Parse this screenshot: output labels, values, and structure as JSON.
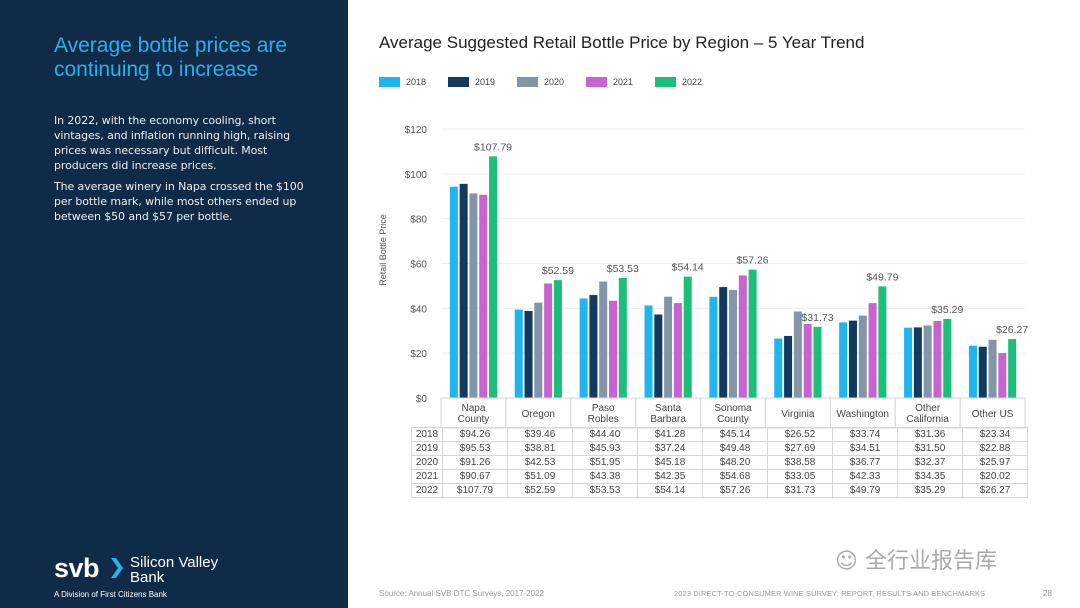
{
  "left_panel": {
    "headline": "Average bottle prices are continuing to increase",
    "paragraph1": "In 2022, with the economy cooling, short vintages, and inflation running high, raising prices was necessary but difficult. Most producers did increase prices.",
    "paragraph2": "The average winery in Napa crossed the $100 per bottle mark, while most others ended up between $50 and $57 per bottle.",
    "logo": {
      "short": "svb",
      "name_line1": "Silicon Valley",
      "name_line2": "Bank",
      "subtitle": "A Division of First Citizens Bank"
    },
    "colors": {
      "background": "#0f2b47",
      "headline": "#2ab0ec",
      "chevron": "#2ab0ec"
    }
  },
  "footer": {
    "source": "Source: Annual SVB DTC Surveys, 2017-2022",
    "report": "2023 DIRECT-TO-CONSUMER WINE SURVEY: REPORT, RESULTS AND BENCHMARKS",
    "page": "28",
    "watermark": "全行业报告库"
  },
  "chart_data": {
    "type": "bar",
    "title": "Average Suggested Retail Bottle Price by Region – 5 Year Trend",
    "xlabel": "",
    "ylabel": "Retail Bottle Price",
    "ylim": [
      0,
      120
    ],
    "yticks": [
      0,
      20,
      40,
      60,
      80,
      100,
      120
    ],
    "ytick_labels": [
      "$0",
      "$20",
      "$40",
      "$60",
      "$80",
      "$100",
      "$120"
    ],
    "grid": true,
    "legend_position": "top-left",
    "categories": [
      "Napa County",
      "Oregon",
      "Paso Robles",
      "Santa Barbara",
      "Sonoma County",
      "Virginia",
      "Washington",
      "Other California",
      "Other US"
    ],
    "category_lines": [
      [
        "Napa",
        "County"
      ],
      [
        "Oregon"
      ],
      [
        "Paso",
        "Robles"
      ],
      [
        "Santa",
        "Barbara"
      ],
      [
        "Sonoma",
        "County"
      ],
      [
        "Virginia"
      ],
      [
        "Washington"
      ],
      [
        "Other",
        "California"
      ],
      [
        "Other US"
      ]
    ],
    "series": [
      {
        "name": "2018",
        "color": "#1fb5f0",
        "values": [
          94.26,
          39.46,
          44.4,
          41.28,
          45.14,
          26.52,
          33.74,
          31.36,
          23.34
        ],
        "labels": [
          "$94.26",
          "$39.46",
          "$44.40",
          "$41.28",
          "$45.14",
          "$26.52",
          "$33.74",
          "$31.36",
          "$23.34"
        ]
      },
      {
        "name": "2019",
        "color": "#123a5e",
        "values": [
          95.53,
          38.81,
          45.93,
          37.24,
          49.48,
          27.69,
          34.51,
          31.5,
          22.88
        ],
        "labels": [
          "$95.53",
          "$38.81",
          "$45.93",
          "$37.24",
          "$49.48",
          "$27.69",
          "$34.51",
          "$31.50",
          "$22.88"
        ]
      },
      {
        "name": "2020",
        "color": "#8595a8",
        "values": [
          91.26,
          42.53,
          51.95,
          45.18,
          48.2,
          38.58,
          36.77,
          32.37,
          25.97
        ],
        "labels": [
          "$91.26",
          "$42.53",
          "$51.95",
          "$45.18",
          "$48.20",
          "$38.58",
          "$36.77",
          "$32.37",
          "$25.97"
        ]
      },
      {
        "name": "2021",
        "color": "#c764d2",
        "values": [
          90.67,
          51.09,
          43.38,
          42.35,
          54.68,
          33.05,
          42.33,
          34.35,
          20.02
        ],
        "labels": [
          "$90.67",
          "$51.09",
          "$43.38",
          "$42.35",
          "$54.68",
          "$33.05",
          "$42.33",
          "$34.35",
          "$20.02"
        ]
      },
      {
        "name": "2022",
        "color": "#1cbf78",
        "values": [
          107.79,
          52.59,
          53.53,
          54.14,
          57.26,
          31.73,
          49.79,
          35.29,
          26.27
        ],
        "labels": [
          "$107.79",
          "$52.59",
          "$53.53",
          "$54.14",
          "$57.26",
          "$31.73",
          "$49.79",
          "$35.29",
          "$26.27"
        ]
      }
    ],
    "annotated_series": "2022"
  }
}
